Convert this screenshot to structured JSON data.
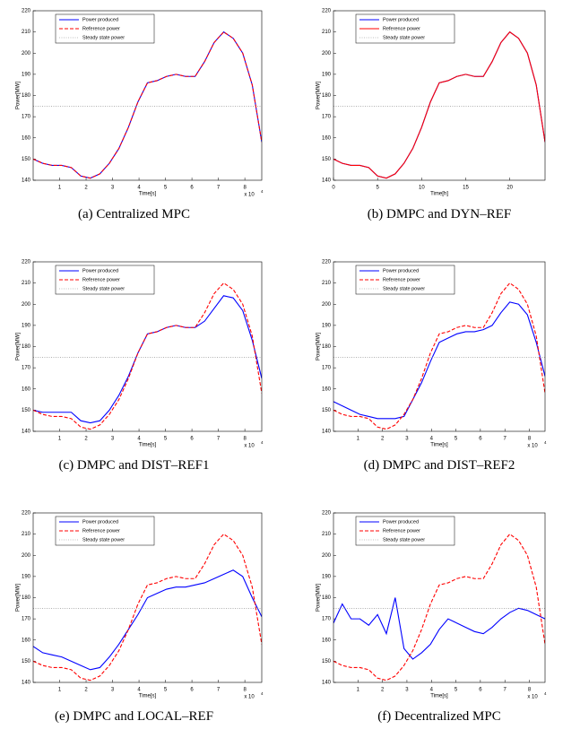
{
  "chart_data": [
    {
      "type": "line",
      "caption": "(a) Centralized MPC",
      "xlabel": "Time[s]",
      "ylabel": "Power[MW]",
      "x_scale": {
        "text": "x 10",
        "exponent": "4"
      },
      "x": [
        0,
        3600,
        7200,
        10800,
        14400,
        18000,
        21600,
        25200,
        28800,
        32400,
        36000,
        39600,
        43200,
        46800,
        50400,
        54000,
        57600,
        61200,
        64800,
        68400,
        72000,
        75600,
        79200,
        82800,
        86400
      ],
      "xlim": [
        0,
        86400
      ],
      "xticks": [
        {
          "value": 10000,
          "label": "1"
        },
        {
          "value": 20000,
          "label": "2"
        },
        {
          "value": 30000,
          "label": "3"
        },
        {
          "value": 40000,
          "label": "4"
        },
        {
          "value": 50000,
          "label": "5"
        },
        {
          "value": 60000,
          "label": "6"
        },
        {
          "value": 70000,
          "label": "7"
        },
        {
          "value": 80000,
          "label": "8"
        }
      ],
      "ylim": [
        140,
        220
      ],
      "yticks": [
        140,
        150,
        160,
        170,
        180,
        190,
        200,
        210,
        220
      ],
      "legend": "upper left",
      "series": [
        {
          "name": "Power produced",
          "color": "#0000ff",
          "dash": "solid",
          "values": [
            150,
            148,
            147,
            147,
            146,
            142,
            141,
            143,
            148,
            155,
            165,
            177,
            186,
            187,
            189,
            190,
            189,
            189,
            196,
            205,
            210,
            207,
            200,
            185,
            158
          ]
        },
        {
          "name": "Reference power",
          "color": "#ff0000",
          "dash": "dashed",
          "values": [
            150,
            148,
            147,
            147,
            146,
            142,
            141,
            143,
            148,
            155,
            165,
            177,
            186,
            187,
            189,
            190,
            189,
            189,
            196,
            205,
            210,
            207,
            200,
            185,
            158
          ]
        },
        {
          "name": "Steady state power",
          "color": "#808080",
          "dash": "dotted",
          "values": [
            175,
            175,
            175,
            175,
            175,
            175,
            175,
            175,
            175,
            175,
            175,
            175,
            175,
            175,
            175,
            175,
            175,
            175,
            175,
            175,
            175,
            175,
            175,
            175,
            175
          ]
        }
      ]
    },
    {
      "type": "line",
      "caption": "(b) DMPC and DYN–REF",
      "xlabel": "Time[h]",
      "ylabel": "Power[MW]",
      "x": [
        0,
        1,
        2,
        3,
        4,
        5,
        6,
        7,
        8,
        9,
        10,
        11,
        12,
        13,
        14,
        15,
        16,
        17,
        18,
        19,
        20,
        21,
        22,
        23,
        24
      ],
      "xlim": [
        0,
        24
      ],
      "xticks": [
        0,
        5,
        10,
        15,
        20
      ],
      "ylim": [
        140,
        220
      ],
      "yticks": [
        140,
        150,
        160,
        170,
        180,
        190,
        200,
        210,
        220
      ],
      "legend": "upper left",
      "series": [
        {
          "name": "Power produced",
          "color": "#0000ff",
          "dash": "solid",
          "values": [
            150,
            148,
            147,
            147,
            146,
            142,
            141,
            143,
            148,
            155,
            165,
            177,
            186,
            187,
            189,
            190,
            189,
            189,
            196,
            205,
            210,
            207,
            200,
            185,
            158
          ]
        },
        {
          "name": "Reference power",
          "color": "#ff0000",
          "dash": "solid",
          "values": [
            150,
            148,
            147,
            147,
            146,
            142,
            141,
            143,
            148,
            155,
            165,
            177,
            186,
            187,
            189,
            190,
            189,
            189,
            196,
            205,
            210,
            207,
            200,
            185,
            158
          ]
        },
        {
          "name": "Steady state power",
          "color": "#808080",
          "dash": "dotted",
          "values": [
            175,
            175,
            175,
            175,
            175,
            175,
            175,
            175,
            175,
            175,
            175,
            175,
            175,
            175,
            175,
            175,
            175,
            175,
            175,
            175,
            175,
            175,
            175,
            175,
            175
          ]
        }
      ]
    },
    {
      "type": "line",
      "caption": "(c) DMPC and DIST–REF1",
      "xlabel": "Time[s]",
      "ylabel": "Power[MW]",
      "x_scale": {
        "text": "x 10",
        "exponent": "4"
      },
      "x": [
        0,
        3600,
        7200,
        10800,
        14400,
        18000,
        21600,
        25200,
        28800,
        32400,
        36000,
        39600,
        43200,
        46800,
        50400,
        54000,
        57600,
        61200,
        64800,
        68400,
        72000,
        75600,
        79200,
        82800,
        86400
      ],
      "xlim": [
        0,
        86400
      ],
      "xticks": [
        {
          "value": 10000,
          "label": "1"
        },
        {
          "value": 20000,
          "label": "2"
        },
        {
          "value": 30000,
          "label": "3"
        },
        {
          "value": 40000,
          "label": "4"
        },
        {
          "value": 50000,
          "label": "5"
        },
        {
          "value": 60000,
          "label": "6"
        },
        {
          "value": 70000,
          "label": "7"
        },
        {
          "value": 80000,
          "label": "8"
        }
      ],
      "ylim": [
        140,
        220
      ],
      "yticks": [
        140,
        150,
        160,
        170,
        180,
        190,
        200,
        210,
        220
      ],
      "legend": "upper left",
      "series": [
        {
          "name": "Power produced",
          "color": "#0000ff",
          "dash": "solid",
          "values": [
            150,
            149,
            149,
            149,
            149,
            145,
            144,
            145,
            150,
            157,
            166,
            177,
            186,
            187,
            189,
            190,
            189,
            189,
            192,
            198,
            204,
            203,
            197,
            183,
            165
          ]
        },
        {
          "name": "Reference power",
          "color": "#ff0000",
          "dash": "dashed",
          "values": [
            150,
            148,
            147,
            147,
            146,
            142,
            141,
            143,
            148,
            155,
            165,
            177,
            186,
            187,
            189,
            190,
            189,
            189,
            196,
            205,
            210,
            207,
            200,
            185,
            158
          ]
        },
        {
          "name": "Steady state power",
          "color": "#808080",
          "dash": "dotted",
          "values": [
            175,
            175,
            175,
            175,
            175,
            175,
            175,
            175,
            175,
            175,
            175,
            175,
            175,
            175,
            175,
            175,
            175,
            175,
            175,
            175,
            175,
            175,
            175,
            175,
            175
          ]
        }
      ]
    },
    {
      "type": "line",
      "caption": "(d) DMPC and DIST–REF2",
      "xlabel": "Time[s]",
      "ylabel": "Power[MW]",
      "x_scale": {
        "text": "x 10",
        "exponent": "4"
      },
      "x": [
        0,
        3600,
        7200,
        10800,
        14400,
        18000,
        21600,
        25200,
        28800,
        32400,
        36000,
        39600,
        43200,
        46800,
        50400,
        54000,
        57600,
        61200,
        64800,
        68400,
        72000,
        75600,
        79200,
        82800,
        86400
      ],
      "xlim": [
        0,
        86400
      ],
      "xticks": [
        {
          "value": 10000,
          "label": "1"
        },
        {
          "value": 20000,
          "label": "2"
        },
        {
          "value": 30000,
          "label": "3"
        },
        {
          "value": 40000,
          "label": "4"
        },
        {
          "value": 50000,
          "label": "5"
        },
        {
          "value": 60000,
          "label": "6"
        },
        {
          "value": 70000,
          "label": "7"
        },
        {
          "value": 80000,
          "label": "8"
        }
      ],
      "ylim": [
        140,
        220
      ],
      "yticks": [
        140,
        150,
        160,
        170,
        180,
        190,
        200,
        210,
        220
      ],
      "legend": "upper left",
      "series": [
        {
          "name": "Power produced",
          "color": "#0000ff",
          "dash": "solid",
          "values": [
            154,
            152,
            150,
            148,
            147,
            146,
            146,
            146,
            147,
            155,
            163,
            173,
            182,
            184,
            186,
            187,
            187,
            188,
            190,
            196,
            201,
            200,
            195,
            182,
            166
          ]
        },
        {
          "name": "Reference power",
          "color": "#ff0000",
          "dash": "dashed",
          "values": [
            150,
            148,
            147,
            147,
            146,
            142,
            141,
            143,
            148,
            155,
            165,
            177,
            186,
            187,
            189,
            190,
            189,
            189,
            196,
            205,
            210,
            207,
            200,
            185,
            158
          ]
        },
        {
          "name": "Steady state power",
          "color": "#808080",
          "dash": "dotted",
          "values": [
            175,
            175,
            175,
            175,
            175,
            175,
            175,
            175,
            175,
            175,
            175,
            175,
            175,
            175,
            175,
            175,
            175,
            175,
            175,
            175,
            175,
            175,
            175,
            175,
            175
          ]
        }
      ]
    },
    {
      "type": "line",
      "caption": "(e) DMPC and LOCAL–REF",
      "xlabel": "Time[s]",
      "ylabel": "Power[MW]",
      "x_scale": {
        "text": "x 10",
        "exponent": "4"
      },
      "x": [
        0,
        3600,
        7200,
        10800,
        14400,
        18000,
        21600,
        25200,
        28800,
        32400,
        36000,
        39600,
        43200,
        46800,
        50400,
        54000,
        57600,
        61200,
        64800,
        68400,
        72000,
        75600,
        79200,
        82800,
        86400
      ],
      "xlim": [
        0,
        86400
      ],
      "xticks": [
        {
          "value": 10000,
          "label": "1"
        },
        {
          "value": 20000,
          "label": "2"
        },
        {
          "value": 30000,
          "label": "3"
        },
        {
          "value": 40000,
          "label": "4"
        },
        {
          "value": 50000,
          "label": "5"
        },
        {
          "value": 60000,
          "label": "6"
        },
        {
          "value": 70000,
          "label": "7"
        },
        {
          "value": 80000,
          "label": "8"
        }
      ],
      "ylim": [
        140,
        220
      ],
      "yticks": [
        140,
        150,
        160,
        170,
        180,
        190,
        200,
        210,
        220
      ],
      "legend": "upper left",
      "series": [
        {
          "name": "Power produced",
          "color": "#0000ff",
          "dash": "solid",
          "values": [
            157,
            154,
            153,
            152,
            150,
            148,
            146,
            147,
            152,
            158,
            165,
            172,
            180,
            182,
            184,
            185,
            185,
            186,
            187,
            189,
            191,
            193,
            190,
            180,
            171
          ]
        },
        {
          "name": "Reference power",
          "color": "#ff0000",
          "dash": "dashed",
          "values": [
            150,
            148,
            147,
            147,
            146,
            142,
            141,
            143,
            148,
            155,
            165,
            177,
            186,
            187,
            189,
            190,
            189,
            189,
            196,
            205,
            210,
            207,
            200,
            185,
            158
          ]
        },
        {
          "name": "Steady state power",
          "color": "#808080",
          "dash": "dotted",
          "values": [
            175,
            175,
            175,
            175,
            175,
            175,
            175,
            175,
            175,
            175,
            175,
            175,
            175,
            175,
            175,
            175,
            175,
            175,
            175,
            175,
            175,
            175,
            175,
            175,
            175
          ]
        }
      ]
    },
    {
      "type": "line",
      "caption": "(f) Decentralized MPC",
      "xlabel": "Time[s]",
      "ylabel": "Power[MW]",
      "x_scale": {
        "text": "x 10",
        "exponent": "4"
      },
      "x": [
        0,
        3600,
        7200,
        10800,
        14400,
        18000,
        21600,
        25200,
        28800,
        32400,
        36000,
        39600,
        43200,
        46800,
        50400,
        54000,
        57600,
        61200,
        64800,
        68400,
        72000,
        75600,
        79200,
        82800,
        86400
      ],
      "xlim": [
        0,
        86400
      ],
      "xticks": [
        {
          "value": 10000,
          "label": "1"
        },
        {
          "value": 20000,
          "label": "2"
        },
        {
          "value": 30000,
          "label": "3"
        },
        {
          "value": 40000,
          "label": "4"
        },
        {
          "value": 50000,
          "label": "5"
        },
        {
          "value": 60000,
          "label": "6"
        },
        {
          "value": 70000,
          "label": "7"
        },
        {
          "value": 80000,
          "label": "8"
        }
      ],
      "ylim": [
        140,
        220
      ],
      "yticks": [
        140,
        150,
        160,
        170,
        180,
        190,
        200,
        210,
        220
      ],
      "legend": "upper left",
      "series": [
        {
          "name": "Power produced",
          "color": "#0000ff",
          "dash": "solid",
          "values": [
            168,
            177,
            170,
            170,
            167,
            172,
            163,
            180,
            156,
            151,
            154,
            158,
            165,
            170,
            168,
            166,
            164,
            163,
            166,
            170,
            173,
            175,
            174,
            172,
            170
          ]
        },
        {
          "name": "Reference power",
          "color": "#ff0000",
          "dash": "dashed",
          "values": [
            150,
            148,
            147,
            147,
            146,
            142,
            141,
            143,
            148,
            155,
            165,
            177,
            186,
            187,
            189,
            190,
            189,
            189,
            196,
            205,
            210,
            207,
            200,
            185,
            158
          ]
        },
        {
          "name": "Steady state power",
          "color": "#808080",
          "dash": "dotted",
          "values": [
            175,
            175,
            175,
            175,
            175,
            175,
            175,
            175,
            175,
            175,
            175,
            175,
            175,
            175,
            175,
            175,
            175,
            175,
            175,
            175,
            175,
            175,
            175,
            175,
            175
          ]
        }
      ]
    }
  ]
}
